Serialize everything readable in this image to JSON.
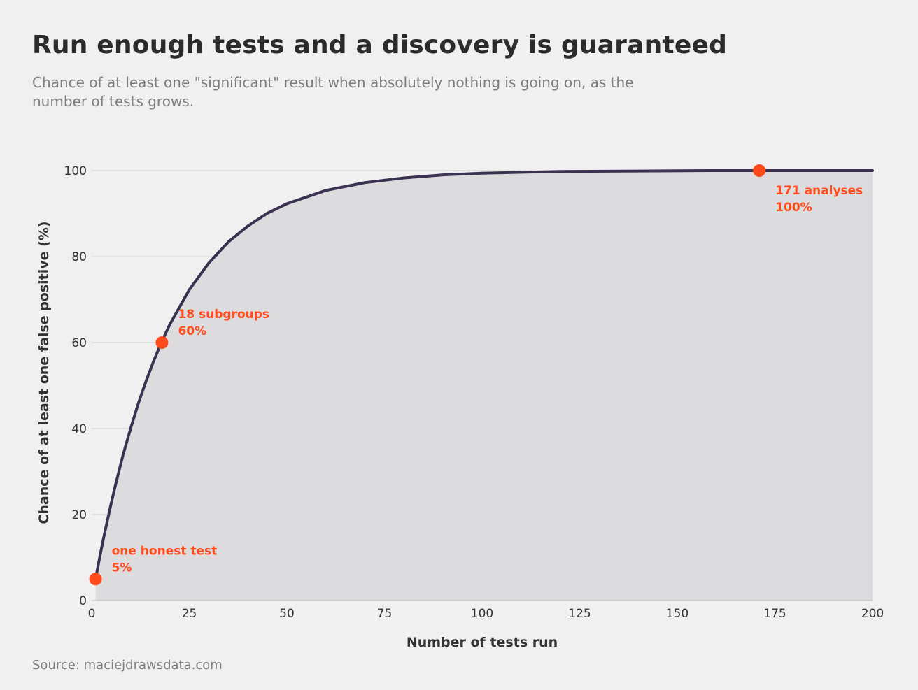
{
  "header": {
    "title": "Run enough tests and a discovery is guaranteed",
    "subtitle": "Chance of at least one \"significant\" result when absolutely nothing is going on, as the number of tests grows."
  },
  "footer": {
    "source": "Source: maciejdrawsdata.com"
  },
  "colors": {
    "line": "#3b3150",
    "area": "#dcdcde",
    "accent": "#ff4a1c",
    "grid": "#d2d2d2"
  },
  "chart_data": {
    "type": "area",
    "title": "Run enough tests and a discovery is guaranteed",
    "xlabel": "Number of tests run",
    "ylabel": "Chance of at least one false positive (%)",
    "xlim": [
      0,
      200
    ],
    "ylim": [
      0,
      100
    ],
    "x_ticks": [
      "0",
      "25",
      "50",
      "75",
      "100",
      "125",
      "150",
      "175",
      "200"
    ],
    "y_ticks": [
      "0",
      "20",
      "40",
      "60",
      "80",
      "100"
    ],
    "grid": "horizontal",
    "series": [
      {
        "x": [
          1,
          2,
          3,
          4,
          5,
          6,
          8,
          10,
          12,
          14,
          16,
          18,
          20,
          25,
          30,
          35,
          40,
          45,
          50,
          60,
          70,
          80,
          90,
          100,
          120,
          140,
          160,
          171,
          180,
          200
        ],
        "y": [
          5.0,
          9.8,
          14.3,
          18.5,
          22.6,
          26.5,
          33.7,
          40.1,
          46.0,
          51.2,
          56.0,
          60.3,
          64.2,
          72.3,
          78.5,
          83.4,
          87.1,
          90.1,
          92.3,
          95.4,
          97.2,
          98.3,
          99.0,
          99.4,
          99.8,
          99.9,
          100.0,
          100.0,
          100.0,
          100.0
        ]
      }
    ],
    "highlights": [
      {
        "x": 1,
        "y": 5,
        "label": "one honest test",
        "value_label": "5%"
      },
      {
        "x": 18,
        "y": 60,
        "label": "18 subgroups",
        "value_label": "60%"
      },
      {
        "x": 171,
        "y": 100,
        "label": "171 analyses",
        "value_label": "100%"
      }
    ]
  }
}
